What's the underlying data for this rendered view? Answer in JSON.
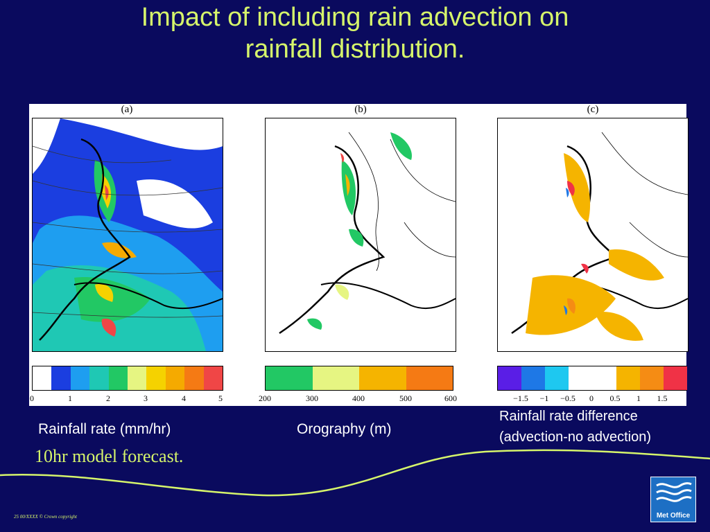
{
  "slide": {
    "title_line1": "Impact of including rain advection on",
    "title_line2": "rainfall distribution.",
    "background_color": "#0a0a5e",
    "accent_color": "#d6f56b",
    "footer_note": "25   00/XXXX   © Crown copyright"
  },
  "panels": [
    {
      "label": "(a)"
    },
    {
      "label": "(b)"
    },
    {
      "label": "(c)"
    }
  ],
  "colorbars": {
    "rainfall": {
      "colors": [
        "#ffffff",
        "#1b3ee0",
        "#1e9ef0",
        "#1fc8b4",
        "#22c864",
        "#e6f582",
        "#f5d200",
        "#f5aa00",
        "#f57a14",
        "#f04646"
      ],
      "ticks": [
        "0",
        "1",
        "2",
        "3",
        "4",
        "5"
      ]
    },
    "orography": {
      "colors": [
        "#22c864",
        "#e6f582",
        "#f5b400",
        "#f57a14"
      ],
      "ticks": [
        "200",
        "300",
        "400",
        "500",
        "600"
      ]
    },
    "difference": {
      "colors": [
        "#5a1ee6",
        "#1e78e6",
        "#1ec8f0",
        "#ffffff",
        "#ffffff",
        "#f5b400",
        "#f58c14",
        "#f03246"
      ],
      "ticks": [
        "−1.5",
        "−1",
        "−0.5",
        "0",
        "0.5",
        "1",
        "1.5"
      ]
    }
  },
  "captions": {
    "rainfall": "Rainfall rate (mm/hr)",
    "orography": "Orography (m)",
    "difference_line1": "Rainfall rate difference",
    "difference_line2": "(advection-no advection)",
    "forecast": "10hr model forecast."
  },
  "logo": {
    "text": "Met Office",
    "icon": "met-office-wave-icon"
  }
}
